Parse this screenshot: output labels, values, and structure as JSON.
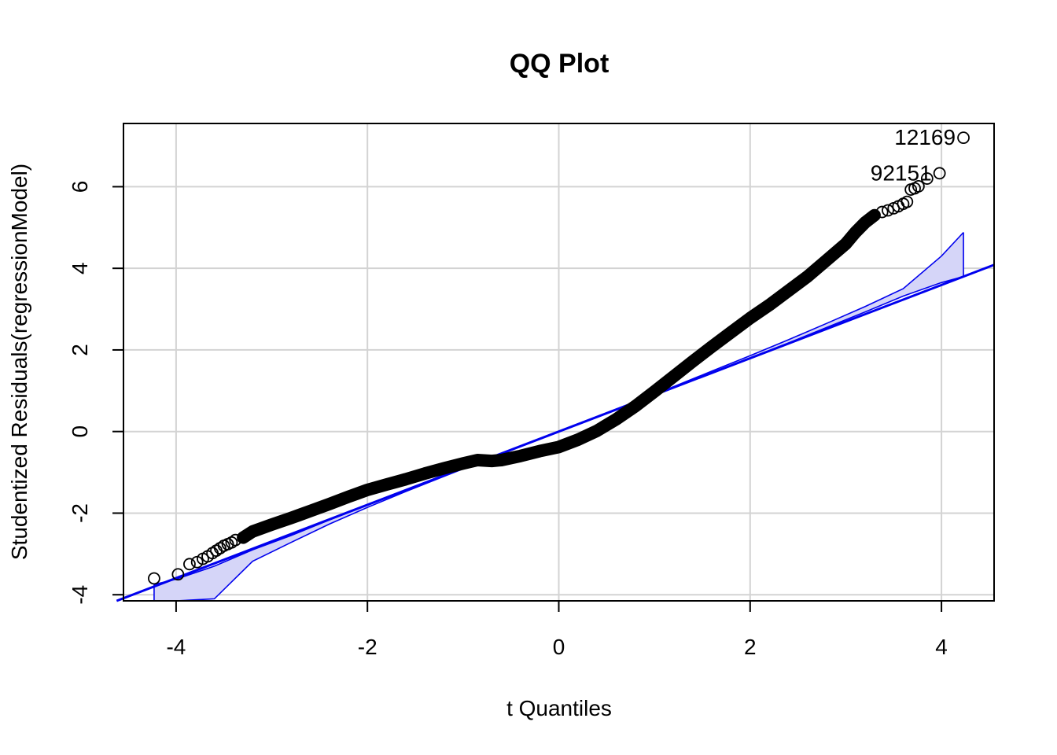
{
  "chart_data": {
    "type": "scatter",
    "title": "QQ Plot",
    "xlabel": "t Quantiles",
    "ylabel": "Studentized Residuals(regressionModel)",
    "xlim": [
      -4.55,
      4.55
    ],
    "ylim": [
      -4.15,
      7.55
    ],
    "x_ticks": [
      -4,
      -2,
      0,
      2,
      4
    ],
    "y_ticks": [
      -4,
      -2,
      0,
      2,
      4,
      6
    ],
    "grid": true,
    "colors": {
      "points": "#000000",
      "reference": "#0000ee",
      "envelope_fill": "#d5d5f8",
      "grid": "#d3d3d3"
    },
    "labeled_points": [
      {
        "label": "12169",
        "x": 4.23,
        "y": 7.2
      },
      {
        "label": "92151",
        "x": 3.98,
        "y": 6.33
      }
    ],
    "tail_points": [
      [
        -4.23,
        -3.6
      ],
      [
        -3.98,
        -3.5
      ],
      [
        -3.86,
        -3.25
      ],
      [
        -3.78,
        -3.2
      ],
      [
        -3.72,
        -3.12
      ],
      [
        -3.67,
        -3.06
      ],
      [
        -3.62,
        -2.98
      ],
      [
        -3.58,
        -2.92
      ],
      [
        -3.54,
        -2.86
      ],
      [
        -3.5,
        -2.8
      ],
      [
        -3.46,
        -2.76
      ],
      [
        -3.42,
        -2.72
      ],
      [
        -3.38,
        -2.66
      ],
      [
        3.38,
        5.38
      ],
      [
        3.44,
        5.42
      ],
      [
        3.5,
        5.47
      ],
      [
        3.55,
        5.52
      ],
      [
        3.6,
        5.58
      ],
      [
        3.64,
        5.63
      ],
      [
        3.68,
        5.93
      ],
      [
        3.72,
        5.96
      ],
      [
        3.76,
        6.01
      ],
      [
        3.85,
        6.2
      ]
    ],
    "sample_quantiles": [
      [
        -3.3,
        -2.6
      ],
      [
        -3.2,
        -2.45
      ],
      [
        -3.0,
        -2.28
      ],
      [
        -2.8,
        -2.12
      ],
      [
        -2.6,
        -1.95
      ],
      [
        -2.4,
        -1.78
      ],
      [
        -2.2,
        -1.6
      ],
      [
        -2.0,
        -1.43
      ],
      [
        -1.8,
        -1.3
      ],
      [
        -1.6,
        -1.17
      ],
      [
        -1.4,
        -1.03
      ],
      [
        -1.2,
        -0.9
      ],
      [
        -1.0,
        -0.78
      ],
      [
        -0.85,
        -0.7
      ],
      [
        -0.7,
        -0.72
      ],
      [
        -0.6,
        -0.7
      ],
      [
        -0.4,
        -0.6
      ],
      [
        -0.2,
        -0.48
      ],
      [
        0.0,
        -0.38
      ],
      [
        0.2,
        -0.2
      ],
      [
        0.4,
        0.02
      ],
      [
        0.6,
        0.3
      ],
      [
        0.8,
        0.62
      ],
      [
        1.0,
        0.98
      ],
      [
        1.2,
        1.35
      ],
      [
        1.4,
        1.72
      ],
      [
        1.6,
        2.08
      ],
      [
        1.8,
        2.43
      ],
      [
        2.0,
        2.78
      ],
      [
        2.2,
        3.1
      ],
      [
        2.4,
        3.45
      ],
      [
        2.6,
        3.8
      ],
      [
        2.8,
        4.2
      ],
      [
        3.0,
        4.6
      ],
      [
        3.1,
        4.88
      ],
      [
        3.2,
        5.12
      ],
      [
        3.3,
        5.3
      ]
    ],
    "reference_line": {
      "intercept": 0.0,
      "slope": 0.898
    },
    "envelope": {
      "x": [
        -4.23,
        -4.0,
        -3.6,
        -3.2,
        -2.8,
        -2.4,
        -2.0,
        -1.6,
        -1.2,
        -0.8,
        -0.4,
        0.0,
        0.4,
        0.8,
        1.2,
        1.6,
        2.0,
        2.4,
        2.8,
        3.2,
        3.6,
        4.0,
        4.23
      ],
      "upper": [
        -3.75,
        -3.62,
        -3.3,
        -2.9,
        -2.55,
        -2.17,
        -1.8,
        -1.43,
        -1.07,
        -0.72,
        -0.36,
        0.0,
        0.37,
        0.73,
        1.1,
        1.48,
        1.86,
        2.25,
        2.65,
        3.06,
        3.5,
        4.3,
        4.88
      ],
      "lower": [
        -4.15,
        -4.15,
        -4.1,
        -3.18,
        -2.72,
        -2.27,
        -1.86,
        -1.47,
        -1.1,
        -0.73,
        -0.37,
        0.0,
        0.36,
        0.72,
        1.07,
        1.43,
        1.8,
        2.17,
        2.55,
        2.93,
        3.32,
        3.65,
        3.8
      ]
    }
  }
}
